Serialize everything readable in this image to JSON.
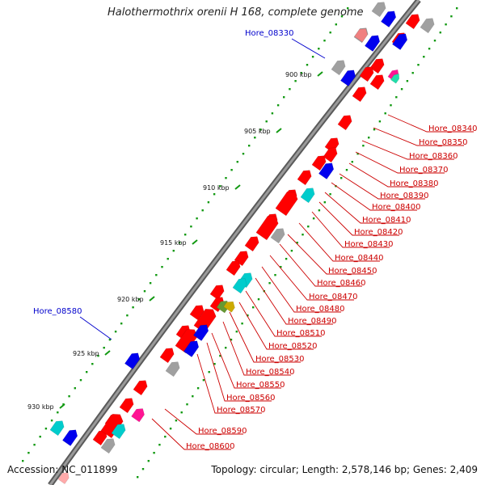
{
  "title": "Halothermothrix orenii H 168, complete genome",
  "footer": {
    "accession": "Accession: NC_011899",
    "summary": "Topology: circular; Length: 2,578,146 bp; Genes: 2,409"
  },
  "colors": {
    "forward_gene": "#ff0000",
    "reverse_gene": "#0000ee",
    "label_red": "#cc0000",
    "label_blue": "#0000cc",
    "backbone": "#777777",
    "tick_green": "#119911",
    "other_gene_cyan": "#00cccc",
    "other_gene_gray": "#aaaaaa",
    "other_gene_pink": "#ff1493"
  },
  "scale_ticks": [
    "900 kbp",
    "905 kbp",
    "910 kbp",
    "915 kbp",
    "920 kbp",
    "925 kbp",
    "930 kbp"
  ],
  "gene_labels_right": [
    "Hore_08340",
    "Hore_08350",
    "Hore_08360",
    "Hore_08370",
    "Hore_08380",
    "Hore_08390",
    "Hore_08400",
    "Hore_08410",
    "Hore_08420",
    "Hore_08430",
    "Hore_08440",
    "Hore_08450",
    "Hore_08460",
    "Hore_08470",
    "Hore_08480",
    "Hore_08490",
    "Hore_08510",
    "Hore_08520",
    "Hore_08530",
    "Hore_08540",
    "Hore_08550",
    "Hore_08560",
    "Hore_08570",
    "Hore_08590",
    "Hore_08600"
  ],
  "gene_labels_left": [
    "Hore_08330",
    "Hore_08580"
  ]
}
